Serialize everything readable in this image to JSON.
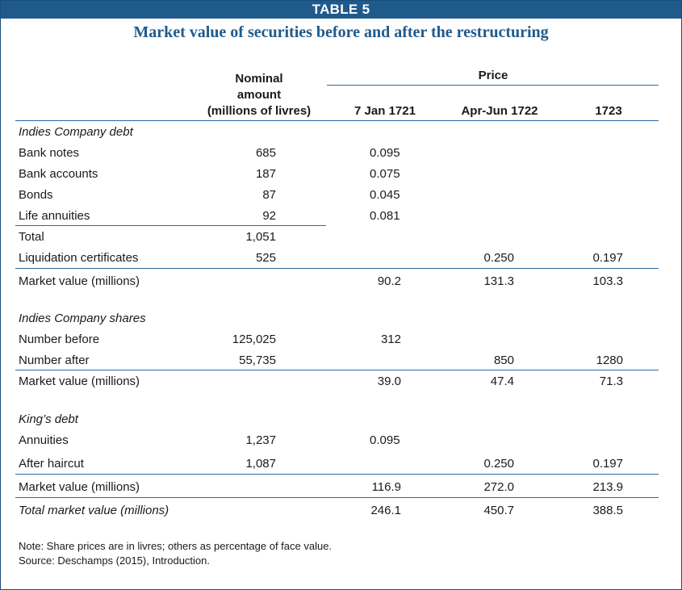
{
  "banner": "TABLE 5",
  "title": "Market value of securities before and after the restructuring",
  "headers": {
    "nominal": [
      "Nominal",
      "amount",
      "(millions of livres)"
    ],
    "price": "Price",
    "date1": "7 Jan 1721",
    "date2": "Apr-Jun 1722",
    "date3": "1723"
  },
  "sections": {
    "debt": {
      "heading": "Indies Company debt",
      "rows": [
        {
          "label": "Bank notes",
          "nominal": "685",
          "p1": "0.095",
          "p2": "",
          "p3": ""
        },
        {
          "label": "Bank accounts",
          "nominal": "187",
          "p1": "0.075",
          "p2": "",
          "p3": ""
        },
        {
          "label": "Bonds",
          "nominal": "87",
          "p1": "0.045",
          "p2": "",
          "p3": ""
        },
        {
          "label": "Life annuities",
          "nominal": "92",
          "p1": "0.081",
          "p2": "",
          "p3": ""
        },
        {
          "label": "Total",
          "nominal": "1,051",
          "p1": "",
          "p2": "",
          "p3": ""
        },
        {
          "label": "Liquidation certificates",
          "nominal": "525",
          "p1": "",
          "p2": "0.250",
          "p3": "0.197"
        }
      ],
      "market": {
        "label": "Market value (millions)",
        "p1": "90.2",
        "p2": "131.3",
        "p3": "103.3"
      }
    },
    "shares": {
      "heading": "Indies Company shares",
      "rows": [
        {
          "label": "Number before",
          "nominal": "125,025",
          "p1": "312",
          "p2": "",
          "p3": ""
        },
        {
          "label": "Number after",
          "nominal": "55,735",
          "p1": "",
          "p2": "850",
          "p3": "1280"
        }
      ],
      "market": {
        "label": "Market value (millions)",
        "p1": "39.0",
        "p2": "47.4",
        "p3": "71.3"
      }
    },
    "king": {
      "heading": "King’s debt",
      "rows": [
        {
          "label": "Annuities",
          "nominal": "1,237",
          "p1": "0.095",
          "p2": "",
          "p3": ""
        },
        {
          "label": "After haircut",
          "nominal": "1,087",
          "p1": "",
          "p2": "0.250",
          "p3": "0.197"
        }
      ],
      "market": {
        "label": "Market value (millions)",
        "p1": "116.9",
        "p2": "272.0",
        "p3": "213.9"
      }
    }
  },
  "total": {
    "label": "Total market value (millions)",
    "p1": "246.1",
    "p2": "450.7",
    "p3": "388.5"
  },
  "notes": [
    "Note: Share prices are in livres; others as percentage of face value.",
    "Source: Deschamps (2015), Introduction."
  ]
}
